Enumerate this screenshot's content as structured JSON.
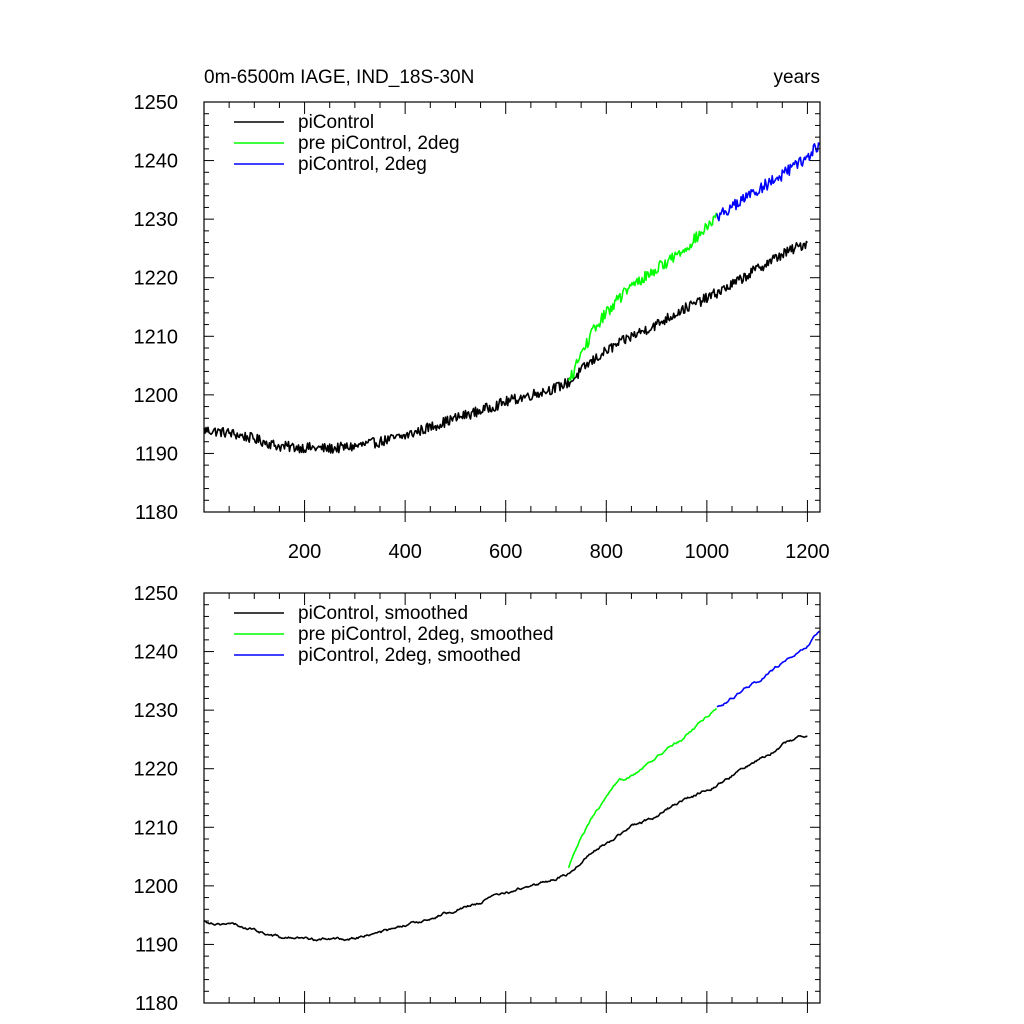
{
  "chart_data": [
    {
      "type": "line",
      "title": "0m-6500m IAGE, IND_18S-30N",
      "title_right": "years",
      "xlim": [
        0,
        1225
      ],
      "ylim": [
        1180,
        1250
      ],
      "xticks": [
        200,
        400,
        600,
        800,
        1000,
        1200
      ],
      "xtick_labels": [
        "200",
        "400",
        "600",
        "800",
        "1000",
        "1200"
      ],
      "yticks": [
        1180,
        1190,
        1200,
        1210,
        1220,
        1230,
        1240,
        1250
      ],
      "ytick_labels": [
        "1180",
        "1190",
        "1200",
        "1210",
        "1220",
        "1230",
        "1240",
        "1250"
      ],
      "legend_position": "top-left",
      "smoothed": false,
      "series": [
        {
          "name": "piControl",
          "color": "#000000",
          "noise": 0.9,
          "x": [
            0,
            50,
            100,
            150,
            200,
            250,
            300,
            350,
            400,
            450,
            500,
            550,
            600,
            650,
            700,
            730,
            760,
            800,
            850,
            900,
            950,
            1000,
            1050,
            1100,
            1150,
            1200
          ],
          "y": [
            1194,
            1193.5,
            1192.5,
            1191.2,
            1191,
            1190.8,
            1191.2,
            1192,
            1193,
            1194.5,
            1196,
            1197.3,
            1198.8,
            1200,
            1201.2,
            1202.3,
            1205,
            1207.5,
            1210,
            1212,
            1214.5,
            1216.5,
            1218.8,
            1221.5,
            1224,
            1226
          ]
        },
        {
          "name": "pre piControl, 2deg",
          "color": "#00ff00",
          "noise": 1.0,
          "x": [
            725,
            750,
            775,
            800,
            825,
            850,
            875,
            900,
            925,
            950,
            975,
            1000,
            1020
          ],
          "y": [
            1202,
            1207,
            1211,
            1214,
            1216.5,
            1218.5,
            1220,
            1221.5,
            1223,
            1224.5,
            1226.5,
            1228.5,
            1230.5
          ]
        },
        {
          "name": "piControl, 2deg",
          "color": "#0000ff",
          "noise": 1.0,
          "x": [
            1020,
            1050,
            1100,
            1150,
            1200,
            1225
          ],
          "y": [
            1230.5,
            1232,
            1235,
            1237.5,
            1240.5,
            1243
          ]
        }
      ]
    },
    {
      "type": "line",
      "title": "",
      "xlim": [
        0,
        1225
      ],
      "ylim": [
        1180,
        1250
      ],
      "xticks": [
        200,
        400,
        600,
        800,
        1000,
        1200
      ],
      "yticks": [
        1180,
        1190,
        1200,
        1210,
        1220,
        1230,
        1240,
        1250
      ],
      "ytick_labels": [
        "1180",
        "1190",
        "1200",
        "1210",
        "1220",
        "1230",
        "1240",
        "1250"
      ],
      "legend_position": "top-left",
      "smoothed": true,
      "series": [
        {
          "name": "piControl, smoothed",
          "color": "#000000",
          "noise": 0.35,
          "x": [
            0,
            50,
            100,
            150,
            200,
            250,
            300,
            350,
            400,
            450,
            500,
            550,
            600,
            650,
            700,
            730,
            760,
            800,
            850,
            900,
            950,
            1000,
            1050,
            1100,
            1150,
            1200
          ],
          "y": [
            1194,
            1193.5,
            1192.5,
            1191.2,
            1191,
            1190.8,
            1191.2,
            1192,
            1193,
            1194.5,
            1196,
            1197.3,
            1198.8,
            1200,
            1201.2,
            1202.3,
            1205,
            1207.5,
            1210,
            1212,
            1214.5,
            1216.5,
            1218.8,
            1221.5,
            1224,
            1226
          ]
        },
        {
          "name": "pre piControl, 2deg, smoothed",
          "color": "#00ff00",
          "noise": 0.35,
          "x": [
            725,
            750,
            775,
            800,
            825,
            850,
            875,
            900,
            925,
            950,
            975,
            1000,
            1020
          ],
          "y": [
            1203,
            1208,
            1212,
            1215,
            1217.5,
            1219,
            1220.5,
            1222,
            1223.5,
            1225,
            1227,
            1229,
            1230.5
          ]
        },
        {
          "name": "piControl, 2deg, smoothed",
          "color": "#0000ff",
          "noise": 0.35,
          "x": [
            1020,
            1050,
            1100,
            1150,
            1200,
            1225
          ],
          "y": [
            1230.5,
            1232,
            1235,
            1238,
            1241,
            1243.5
          ]
        }
      ]
    }
  ]
}
